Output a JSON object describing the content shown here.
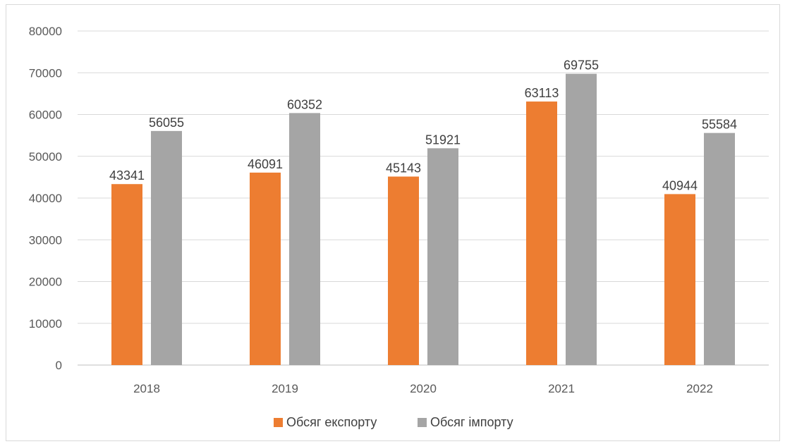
{
  "chart_data": {
    "type": "bar",
    "categories": [
      "2018",
      "2019",
      "2020",
      "2021",
      "2022"
    ],
    "series": [
      {
        "name": "Обсяг експорту",
        "color": "#ED7D31",
        "values": [
          43341,
          46091,
          45143,
          63113,
          40944
        ]
      },
      {
        "name": "Обсяг імпорту",
        "color": "#A5A5A5",
        "values": [
          56055,
          60352,
          51921,
          69755,
          55584
        ]
      }
    ],
    "ylim": [
      0,
      80000
    ],
    "yticks": [
      "0",
      "10000",
      "20000",
      "30000",
      "40000",
      "50000",
      "60000",
      "70000",
      "80000"
    ],
    "grid": true,
    "legend_position": "bottom",
    "data_labels": true
  }
}
